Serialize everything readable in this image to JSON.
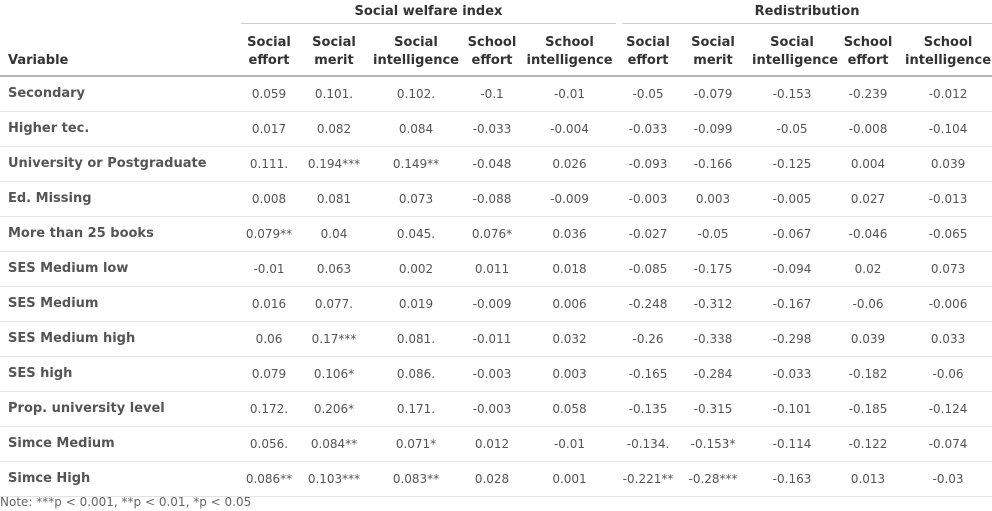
{
  "groups": [
    "Social welfare index",
    "Redistribution"
  ],
  "variable_header": "Variable",
  "columns": [
    {
      "l1": "Social",
      "l2": "effort"
    },
    {
      "l1": "Social",
      "l2": "merit"
    },
    {
      "l1": "Social",
      "l2": "intelligence"
    },
    {
      "l1": "School",
      "l2": "effort"
    },
    {
      "l1": "School",
      "l2": "intelligence"
    },
    {
      "l1": "Social",
      "l2": "effort"
    },
    {
      "l1": "Social",
      "l2": "merit"
    },
    {
      "l1": "Social",
      "l2": "intelligence"
    },
    {
      "l1": "School",
      "l2": "effort"
    },
    {
      "l1": "School",
      "l2": "intelligence"
    }
  ],
  "rows": [
    {
      "label": "Secondary",
      "values": [
        "0.059",
        "0.101.",
        "0.102.",
        "-0.1",
        "-0.01",
        "-0.05",
        "-0.079",
        "-0.153",
        "-0.239",
        "-0.012"
      ]
    },
    {
      "label": "Higher tec.",
      "values": [
        "0.017",
        "0.082",
        "0.084",
        "-0.033",
        "-0.004",
        "-0.033",
        "-0.099",
        "-0.05",
        "-0.008",
        "-0.104"
      ]
    },
    {
      "label": "University or Postgraduate",
      "values": [
        "0.111.",
        "0.194***",
        "0.149**",
        "-0.048",
        "0.026",
        "-0.093",
        "-0.166",
        "-0.125",
        "0.004",
        "0.039"
      ]
    },
    {
      "label": "Ed. Missing",
      "values": [
        "0.008",
        "0.081",
        "0.073",
        "-0.088",
        "-0.009",
        "-0.003",
        "0.003",
        "-0.005",
        "0.027",
        "-0.013"
      ]
    },
    {
      "label": "More than 25 books",
      "values": [
        "0.079**",
        "0.04",
        "0.045.",
        "0.076*",
        "0.036",
        "-0.027",
        "-0.05",
        "-0.067",
        "-0.046",
        "-0.065"
      ]
    },
    {
      "label": "SES Medium low",
      "values": [
        "-0.01",
        "0.063",
        "0.002",
        "0.011",
        "0.018",
        "-0.085",
        "-0.175",
        "-0.094",
        "0.02",
        "0.073"
      ]
    },
    {
      "label": "SES Medium",
      "values": [
        "0.016",
        "0.077.",
        "0.019",
        "-0.009",
        "0.006",
        "-0.248",
        "-0.312",
        "-0.167",
        "-0.06",
        "-0.006"
      ]
    },
    {
      "label": "SES Medium high",
      "values": [
        "0.06",
        "0.17***",
        "0.081.",
        "-0.011",
        "0.032",
        "-0.26",
        "-0.338",
        "-0.298",
        "0.039",
        "0.033"
      ]
    },
    {
      "label": "SES high",
      "values": [
        "0.079",
        "0.106*",
        "0.086.",
        "-0.003",
        "0.003",
        "-0.165",
        "-0.284",
        "-0.033",
        "-0.182",
        "-0.06"
      ]
    },
    {
      "label": "Prop. university level",
      "values": [
        "0.172.",
        "0.206*",
        "0.171.",
        "-0.003",
        "0.058",
        "-0.135",
        "-0.315",
        "-0.101",
        "-0.185",
        "-0.124"
      ]
    },
    {
      "label": "Simce Medium",
      "values": [
        "0.056.",
        "0.084**",
        "0.071*",
        "0.012",
        "-0.01",
        "-0.134.",
        "-0.153*",
        "-0.114",
        "-0.122",
        "-0.074"
      ]
    },
    {
      "label": "Simce High",
      "values": [
        "0.086**",
        "0.103***",
        "0.083**",
        "0.028",
        "0.001",
        "-0.221**",
        "-0.28***",
        "-0.163",
        "0.013",
        "-0.03"
      ]
    }
  ],
  "note": "Note: ***p < 0.001, **p < 0.01, *p < 0.05"
}
